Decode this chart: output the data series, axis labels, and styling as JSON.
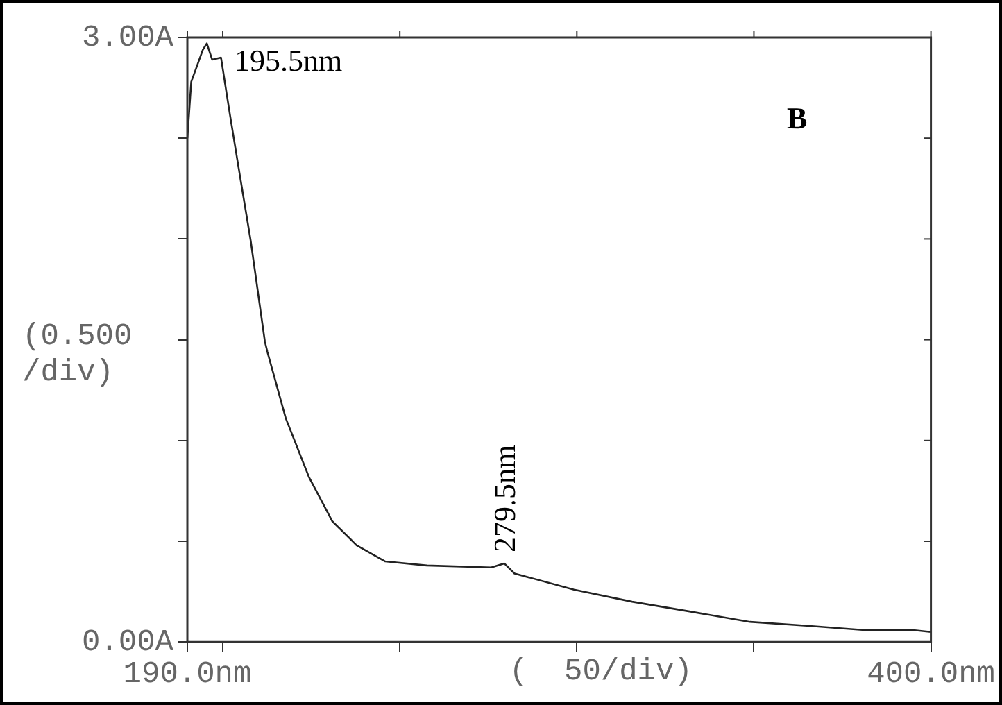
{
  "chart_data": {
    "type": "line",
    "xlabel": "(  50/div)",
    "ylabel": "(0.500 /div)",
    "x": [
      190,
      191.1,
      194.4,
      195.5,
      197,
      199.5,
      202,
      204.6,
      207.9,
      211.9,
      212.6,
      217.8,
      224.3,
      230.9,
      237.8,
      245.9,
      257.6,
      275.8,
      279.5,
      282.4,
      299.2,
      315.6,
      332.4,
      348.9,
      365.7,
      380.6,
      394.5,
      400
    ],
    "series": [
      {
        "color": "#222222",
        "values": [
          2.5,
          2.78,
          2.94,
          2.97,
          2.89,
          2.9,
          2.62,
          2.34,
          1.99,
          1.49,
          1.44,
          1.11,
          0.82,
          0.6,
          0.48,
          0.4,
          0.38,
          0.37,
          0.39,
          0.34,
          0.26,
          0.2,
          0.15,
          0.1,
          0.08,
          0.06,
          0.06,
          0.05
        ]
      }
    ],
    "xlim": [
      190,
      400
    ],
    "xticks": [
      {
        "value": 190,
        "label": "190.0nm"
      },
      {
        "value": 200,
        "label": null
      },
      {
        "value": 250,
        "label": null
      },
      {
        "value": 300,
        "label": null
      },
      {
        "value": 350,
        "label": null
      },
      {
        "value": 400,
        "label": "400.0nm"
      }
    ],
    "ylim": [
      0,
      3
    ],
    "yticks": [
      {
        "value": 0,
        "label": "0.00A"
      },
      {
        "value": 0.5,
        "label": null
      },
      {
        "value": 1,
        "label": null
      },
      {
        "value": 1.5,
        "label": null
      },
      {
        "value": 2,
        "label": null
      },
      {
        "value": 2.5,
        "label": null
      },
      {
        "value": 3,
        "label": "3.00A"
      }
    ],
    "annotations": [
      {
        "text": "195.5nm",
        "x": 195.5,
        "y": 2.97
      },
      {
        "text": "279.5nm",
        "x": 279.5,
        "y": 0.39
      },
      "B"
    ],
    "grid": false,
    "legend": false,
    "marker": "none",
    "line_style": "solid"
  }
}
